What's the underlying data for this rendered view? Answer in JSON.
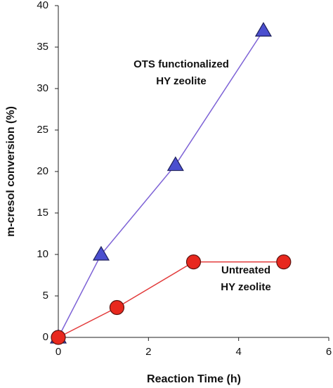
{
  "chart_data": {
    "type": "scatter-line",
    "x_label": "Reaction Time (h)",
    "y_label": "m-cresol conversion (%)",
    "xlim": [
      0,
      6
    ],
    "xticks": [
      0,
      2,
      4,
      6
    ],
    "ylim": [
      0,
      40
    ],
    "yticks": [
      0,
      5,
      10,
      15,
      20,
      25,
      30,
      35,
      40
    ],
    "grid": false,
    "series": [
      {
        "color": "#4b4fcf",
        "line_color": "#7d62d6",
        "marker": "triangle",
        "x": [
          0,
          0.95,
          2.6,
          4.55
        ],
        "values": [
          0,
          10,
          20.8,
          37
        ]
      },
      {
        "color": "#e8281e",
        "line_color": "#e23a3a",
        "marker": "circle",
        "x": [
          0,
          1.3,
          3,
          5
        ],
        "values": [
          0,
          3.6,
          9.1,
          9.1
        ]
      }
    ],
    "annotations": [
      {
        "lines": [
          "OTS functionalized",
          "HY zeolite"
        ]
      },
      {
        "lines": [
          "Untreated",
          "HY zeolite"
        ]
      }
    ]
  }
}
